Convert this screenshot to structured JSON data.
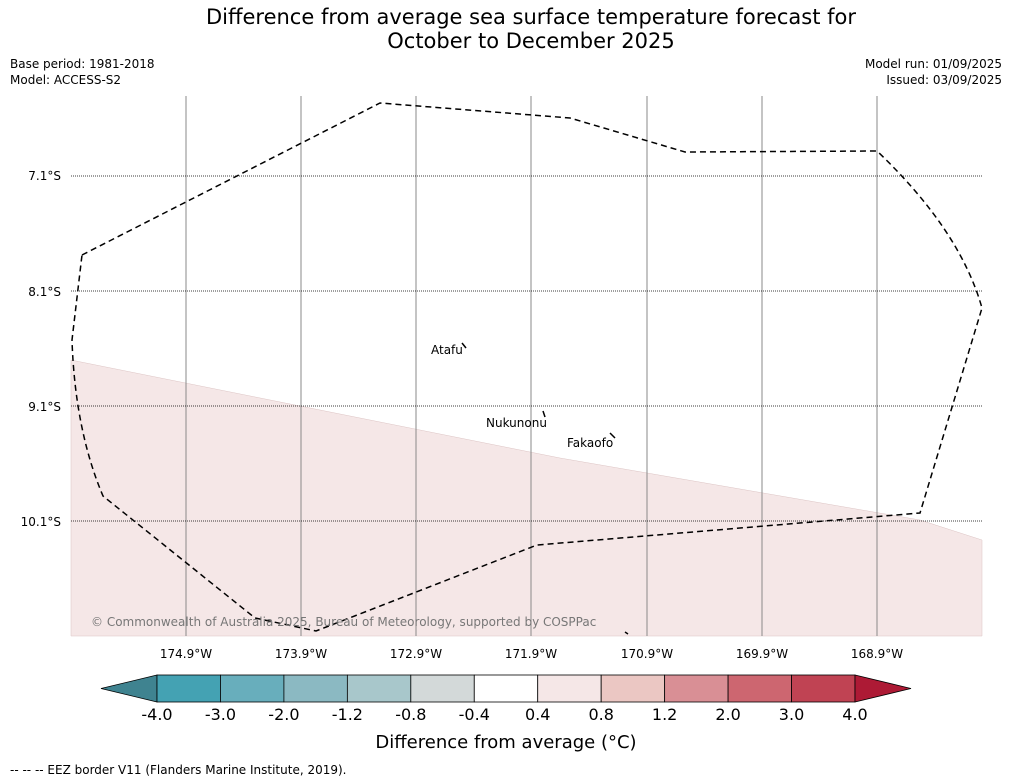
{
  "title_line1": "Difference from average sea surface temperature forecast for",
  "title_line2": "October to December 2025",
  "base_period": "Base period: 1981-2018",
  "model": "Model: ACCESS-S2",
  "model_run": "Model run: 01/09/2025",
  "issued": "Issued: 03/09/2025",
  "lat_labels": [
    "7.1°S",
    "8.1°S",
    "9.1°S",
    "10.1°S"
  ],
  "lon_labels": [
    "174.9°W",
    "173.9°W",
    "172.9°W",
    "171.9°W",
    "170.9°W",
    "169.9°W",
    "168.9°W"
  ],
  "places": [
    "Atafu",
    "Nukunonu",
    "Fakaofo"
  ],
  "copyright": "© Commonwealth of Australia 2025, Bureau of Meteorology, supported by COSPPac",
  "colorbar": {
    "ticks": [
      "-4.0",
      "-3.0",
      "-2.0",
      "-1.2",
      "-0.8",
      "-0.4",
      "0.4",
      "0.8",
      "1.2",
      "2.0",
      "3.0",
      "4.0"
    ],
    "colors": [
      "#3f8390",
      "#44a2b3",
      "#68aebc",
      "#8bb9c2",
      "#a8c7cb",
      "#d3d9d9",
      "#ffffff",
      "#f5e7e7",
      "#ebc7c3",
      "#d98f95",
      "#cd6670",
      "#c04353",
      "#ad1a35"
    ],
    "title": "Difference from average (°C)"
  },
  "footer": "--  --  -- EEZ border V11 (Flanders Marine Institute, 2019)."
}
